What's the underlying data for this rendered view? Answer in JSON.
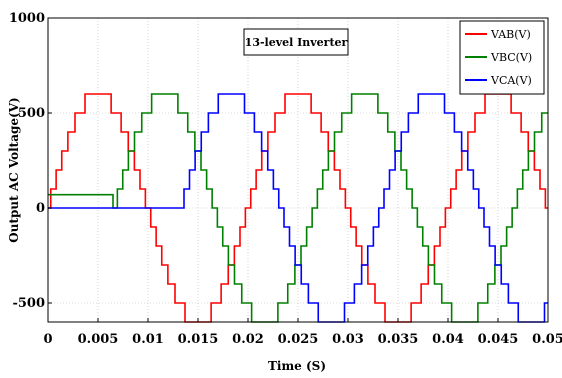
{
  "chart_data": {
    "type": "line",
    "annotation": "13-level Inverter",
    "xlabel": "Time (S)",
    "ylabel": "Output AC Voltage(V)",
    "xlim": [
      0,
      0.05
    ],
    "ylim": [
      -600,
      1000
    ],
    "grid": true,
    "legend_position": "top-right",
    "x_tick_labels": [
      "0",
      "0.005",
      "0.01",
      "0.015",
      "0.02",
      "0.025",
      "0.03",
      "0.035",
      "0.04",
      "0.045",
      "0.05"
    ],
    "x_ticks": [
      0,
      0.005,
      0.01,
      0.015,
      0.02,
      0.025,
      0.03,
      0.035,
      0.04,
      0.045,
      0.05
    ],
    "y_tick_labels": [
      "-500",
      "0",
      "500",
      "1000"
    ],
    "y_ticks": [
      -500,
      0,
      500,
      1000
    ],
    "waveform": {
      "frequency_hz": 50,
      "levels": 13,
      "step_v": 100,
      "peak_v": 600
    },
    "series": [
      {
        "name": "VAB(V)",
        "color": "#ff0000",
        "phase_deg": 0,
        "start_s": 0,
        "initial_v": 70
      },
      {
        "name": "VBC(V)",
        "color": "#008000",
        "phase_deg": -120,
        "start_s": 0.0065,
        "initial_v": 70
      },
      {
        "name": "VCA(V)",
        "color": "#0000ff",
        "phase_deg": 120,
        "start_s": 0.0133,
        "initial_v": 0
      }
    ]
  }
}
